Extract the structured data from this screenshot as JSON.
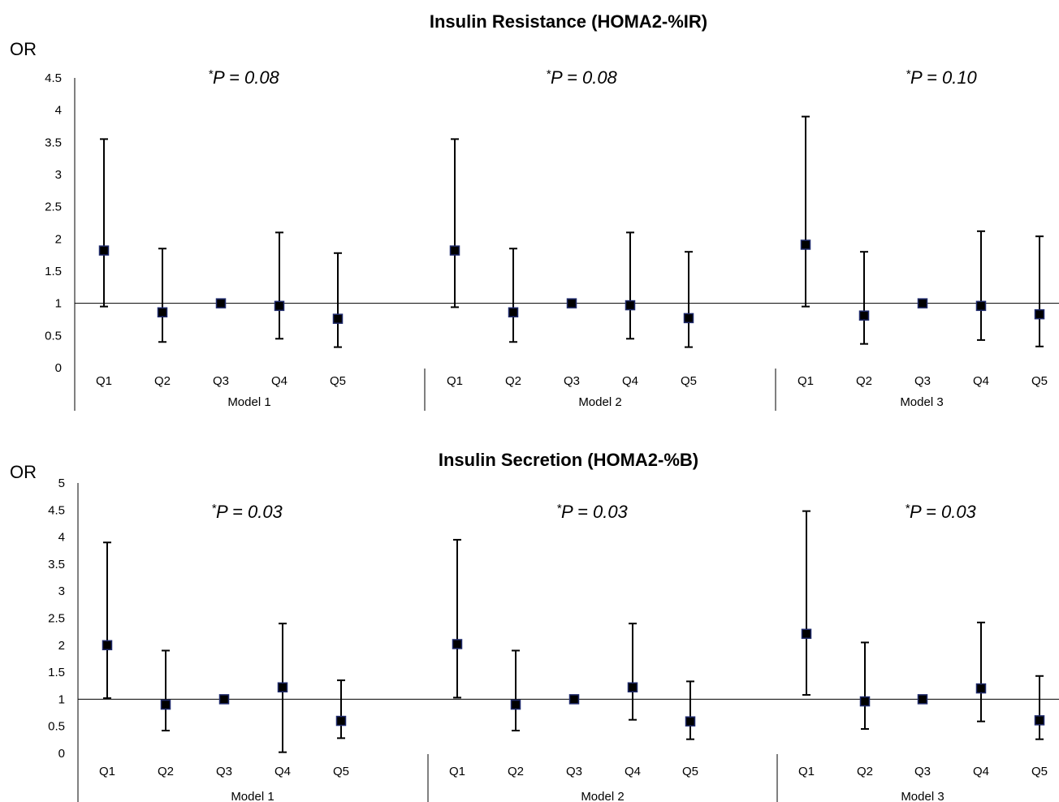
{
  "chart_data": [
    {
      "type": "scatter",
      "title": "Insulin Resistance (HOMA2-%IR)",
      "ylabel": "OR",
      "ylim": [
        0,
        4.5
      ],
      "yticks": [
        "0",
        "0.5",
        "1",
        "1.5",
        "2",
        "2.5",
        "3",
        "3.5",
        "4",
        "4.5"
      ],
      "reference_line": 1,
      "error_bars": true,
      "categories": [
        "Q1",
        "Q2",
        "Q3",
        "Q4",
        "Q5"
      ],
      "groups": [
        {
          "name": "Model 1",
          "p_star": "*",
          "p_text": "P = 0.08",
          "points": [
            {
              "category": "Q1",
              "or": 1.82,
              "lower": 0.95,
              "upper": 3.55
            },
            {
              "category": "Q2",
              "or": 0.86,
              "lower": 0.4,
              "upper": 1.85
            },
            {
              "category": "Q3",
              "or": 1.0,
              "lower": 1.0,
              "upper": 1.0
            },
            {
              "category": "Q4",
              "or": 0.96,
              "lower": 0.45,
              "upper": 2.1
            },
            {
              "category": "Q5",
              "or": 0.76,
              "lower": 0.32,
              "upper": 1.78
            }
          ]
        },
        {
          "name": "Model 2",
          "p_star": "*",
          "p_text": "P = 0.08",
          "points": [
            {
              "category": "Q1",
              "or": 1.82,
              "lower": 0.94,
              "upper": 3.55
            },
            {
              "category": "Q2",
              "or": 0.86,
              "lower": 0.4,
              "upper": 1.85
            },
            {
              "category": "Q3",
              "or": 1.0,
              "lower": 1.0,
              "upper": 1.0
            },
            {
              "category": "Q4",
              "or": 0.97,
              "lower": 0.45,
              "upper": 2.1
            },
            {
              "category": "Q5",
              "or": 0.77,
              "lower": 0.32,
              "upper": 1.8
            }
          ]
        },
        {
          "name": "Model 3",
          "p_star": "*",
          "p_text": "P = 0.10",
          "points": [
            {
              "category": "Q1",
              "or": 1.91,
              "lower": 0.95,
              "upper": 3.9
            },
            {
              "category": "Q2",
              "or": 0.81,
              "lower": 0.37,
              "upper": 1.8
            },
            {
              "category": "Q3",
              "or": 1.0,
              "lower": 1.0,
              "upper": 1.0
            },
            {
              "category": "Q4",
              "or": 0.96,
              "lower": 0.43,
              "upper": 2.12
            },
            {
              "category": "Q5",
              "or": 0.83,
              "lower": 0.33,
              "upper": 2.04
            }
          ]
        }
      ]
    },
    {
      "type": "scatter",
      "title": "Insulin Secretion (HOMA2-%B)",
      "ylabel": "OR",
      "ylim": [
        0,
        5
      ],
      "yticks": [
        "0",
        "0.5",
        "1",
        "1.5",
        "2",
        "2.5",
        "3",
        "3.5",
        "4",
        "4.5",
        "5"
      ],
      "reference_line": 1,
      "error_bars": true,
      "categories": [
        "Q1",
        "Q2",
        "Q3",
        "Q4",
        "Q5"
      ],
      "groups": [
        {
          "name": "Model 1",
          "p_star": "*",
          "p_text": "P = 0.03",
          "points": [
            {
              "category": "Q1",
              "or": 2.0,
              "lower": 1.02,
              "upper": 3.9
            },
            {
              "category": "Q2",
              "or": 0.9,
              "lower": 0.42,
              "upper": 1.9
            },
            {
              "category": "Q3",
              "or": 1.0,
              "lower": 1.0,
              "upper": 1.0
            },
            {
              "category": "Q4",
              "or": 1.22,
              "lower": 0.02,
              "upper": 2.4
            },
            {
              "category": "Q5",
              "or": 0.6,
              "lower": 0.28,
              "upper": 1.35
            }
          ]
        },
        {
          "name": "Model 2",
          "p_star": "*",
          "p_text": "P = 0.03",
          "points": [
            {
              "category": "Q1",
              "or": 2.02,
              "lower": 1.03,
              "upper": 3.95
            },
            {
              "category": "Q2",
              "or": 0.9,
              "lower": 0.42,
              "upper": 1.9
            },
            {
              "category": "Q3",
              "or": 1.0,
              "lower": 1.0,
              "upper": 1.0
            },
            {
              "category": "Q4",
              "or": 1.22,
              "lower": 0.62,
              "upper": 2.4
            },
            {
              "category": "Q5",
              "or": 0.59,
              "lower": 0.26,
              "upper": 1.33
            }
          ]
        },
        {
          "name": "Model 3",
          "p_star": "*",
          "p_text": "P = 0.03",
          "points": [
            {
              "category": "Q1",
              "or": 2.21,
              "lower": 1.08,
              "upper": 4.48
            },
            {
              "category": "Q2",
              "or": 0.96,
              "lower": 0.45,
              "upper": 2.05
            },
            {
              "category": "Q3",
              "or": 1.0,
              "lower": 1.0,
              "upper": 1.0
            },
            {
              "category": "Q4",
              "or": 1.2,
              "lower": 0.59,
              "upper": 2.42
            },
            {
              "category": "Q5",
              "or": 0.61,
              "lower": 0.26,
              "upper": 1.43
            }
          ]
        }
      ]
    }
  ]
}
